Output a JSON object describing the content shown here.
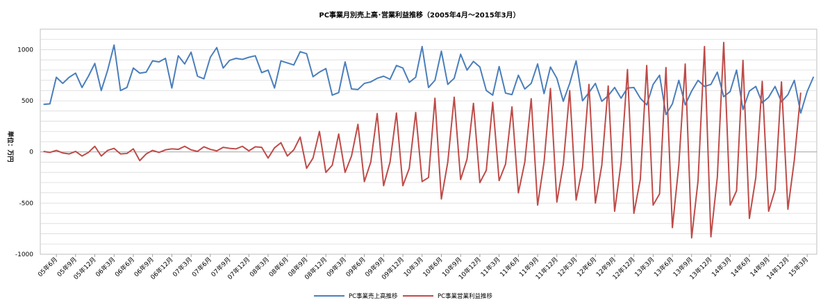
{
  "chart_data": {
    "type": "line",
    "title": "PC事業月別売上高･営業利益推移（2005年4月～2015年3月）",
    "ylabel": "単位：万円",
    "ylim": [
      -1000,
      1200
    ],
    "yticks": [
      -1000,
      -500,
      0,
      500,
      1000
    ],
    "ytick_labels": [
      "-1000",
      "-500",
      "0",
      "500",
      "1000"
    ],
    "grid": true,
    "legend_position": "bottom",
    "x_tick_labels": [
      "05年6月",
      "05年9月",
      "05年12月",
      "06年3月",
      "06年6月",
      "06年9月",
      "06年12月",
      "07年3月",
      "07年6月",
      "07年9月",
      "07年12月",
      "08年3月",
      "08年6月",
      "08年9月",
      "08年12月",
      "09年3月",
      "09年6月",
      "09年9月",
      "09年12月",
      "10年3月",
      "10年6月",
      "10年9月",
      "10年12月",
      "11年3月",
      "11年6月",
      "11年9月",
      "11年12月",
      "12年3月",
      "12年6月",
      "12年9月",
      "12年12月",
      "13年3月",
      "13年6月",
      "13年9月",
      "13年12月",
      "14年3月",
      "14年6月",
      "14年9月",
      "14年12月",
      "15年3月"
    ],
    "series": [
      {
        "name": "PC事業売上高推移",
        "color": "#4a7ebb",
        "values": [
          465,
          470,
          730,
          670,
          730,
          770,
          630,
          740,
          865,
          600,
          800,
          1045,
          600,
          630,
          820,
          770,
          780,
          890,
          880,
          915,
          625,
          940,
          860,
          975,
          740,
          715,
          925,
          1020,
          820,
          895,
          915,
          905,
          925,
          940,
          775,
          800,
          625,
          890,
          870,
          850,
          980,
          960,
          735,
          780,
          815,
          555,
          580,
          880,
          615,
          610,
          670,
          685,
          720,
          740,
          710,
          845,
          820,
          680,
          730,
          1030,
          630,
          700,
          985,
          660,
          720,
          955,
          800,
          885,
          830,
          600,
          555,
          835,
          575,
          560,
          750,
          615,
          670,
          860,
          570,
          830,
          720,
          495,
          670,
          890,
          500,
          580,
          670,
          495,
          550,
          630,
          525,
          625,
          630,
          525,
          460,
          660,
          750,
          365,
          470,
          700,
          460,
          595,
          700,
          640,
          660,
          780,
          540,
          590,
          800,
          415,
          595,
          640,
          480,
          535,
          640,
          490,
          560,
          700,
          380,
          590,
          735
        ],
        "linestyle": "solid"
      },
      {
        "name": "PC事業営業利益推移",
        "color": "#be4b48",
        "values": [
          5,
          -5,
          15,
          -10,
          -20,
          5,
          -40,
          -5,
          55,
          -40,
          15,
          35,
          -20,
          -15,
          30,
          -85,
          -20,
          15,
          -5,
          20,
          30,
          25,
          55,
          20,
          5,
          50,
          25,
          10,
          45,
          35,
          30,
          55,
          10,
          50,
          45,
          -60,
          40,
          90,
          -40,
          20,
          145,
          -160,
          -60,
          200,
          -200,
          -130,
          175,
          -200,
          -40,
          270,
          -290,
          -100,
          375,
          -330,
          -100,
          380,
          -330,
          -160,
          385,
          -290,
          -250,
          525,
          -460,
          -100,
          535,
          -270,
          -70,
          475,
          -300,
          -180,
          485,
          -280,
          -120,
          440,
          -400,
          -100,
          520,
          -520,
          -100,
          620,
          -490,
          -120,
          600,
          -470,
          -150,
          660,
          -500,
          -130,
          645,
          -580,
          -110,
          805,
          -600,
          -270,
          845,
          -520,
          -410,
          825,
          -740,
          -130,
          860,
          -840,
          -280,
          1030,
          -830,
          -250,
          1070,
          -520,
          -380,
          895,
          -650,
          -250,
          690,
          -580,
          -370,
          685,
          -560,
          -80,
          580
        ],
        "linestyle": "solid"
      }
    ]
  }
}
